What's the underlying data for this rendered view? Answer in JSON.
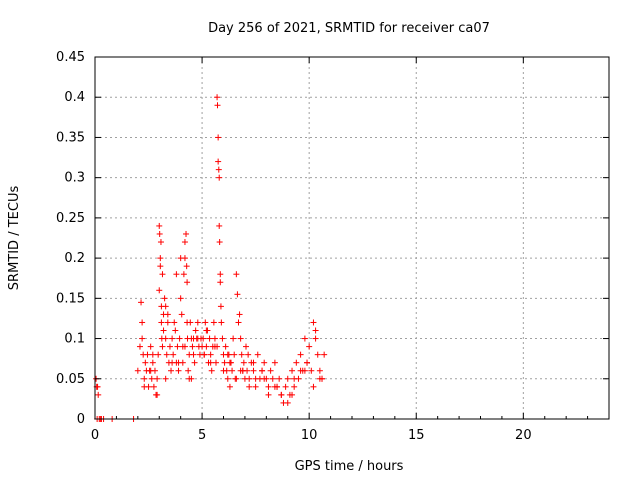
{
  "chart_data": {
    "type": "scatter",
    "title": "Day 256 of 2021, SRMTID for receiver ca07",
    "xlabel": "GPS time / hours",
    "ylabel": "SRMTID / TECUs",
    "xlim": [
      0,
      24
    ],
    "ylim": [
      0,
      0.45
    ],
    "xticks": [
      0,
      5,
      10,
      15,
      20
    ],
    "yticks": [
      0,
      0.05,
      0.1,
      0.15,
      0.2,
      0.25,
      0.3,
      0.35,
      0.4,
      0.45
    ],
    "ytick_labels": [
      "0",
      "0.05",
      "0.1",
      "0.15",
      "0.2",
      "0.25",
      "0.3",
      "0.35",
      "0.4",
      "0.45"
    ],
    "grid": true,
    "marker": "+",
    "marker_color": "#ff0000",
    "series": [
      {
        "name": "SRMTID",
        "x": [
          0.05,
          0.08,
          0.1,
          0.12,
          0.15,
          0.2,
          0.25,
          0.3,
          0.4,
          0.8,
          1.8,
          2.0,
          2.1,
          2.15,
          2.2,
          2.25,
          2.3,
          2.35,
          2.4,
          2.45,
          2.5,
          2.55,
          2.6,
          2.65,
          2.7,
          2.75,
          2.8,
          2.85,
          2.9,
          2.95,
          3.0,
          3.0,
          3.02,
          3.05,
          3.05,
          3.08,
          3.1,
          3.1,
          3.12,
          3.15,
          3.15,
          3.2,
          3.2,
          3.25,
          3.3,
          3.3,
          3.35,
          3.4,
          3.45,
          3.5,
          3.55,
          3.6,
          3.65,
          3.7,
          3.75,
          3.8,
          3.85,
          3.9,
          3.95,
          4.0,
          4.0,
          4.05,
          4.1,
          4.1,
          4.15,
          4.2,
          4.2,
          4.25,
          4.28,
          4.3,
          4.3,
          4.32,
          4.35,
          4.4,
          4.4,
          4.45,
          4.5,
          4.55,
          4.6,
          4.65,
          4.7,
          4.75,
          4.8,
          4.85,
          4.9,
          4.95,
          5.0,
          5.05,
          5.1,
          5.15,
          5.2,
          5.25,
          5.3,
          5.35,
          5.4,
          5.45,
          5.5,
          5.55,
          5.6,
          5.65,
          5.7,
          5.72,
          5.75,
          5.75,
          5.78,
          5.8,
          5.8,
          5.82,
          5.85,
          5.85,
          5.88,
          5.9,
          5.95,
          6.0,
          6.05,
          6.1,
          6.15,
          6.2,
          6.25,
          6.3,
          6.35,
          6.4,
          6.45,
          6.5,
          6.55,
          6.6,
          6.65,
          6.7,
          6.75,
          6.8,
          6.85,
          6.9,
          6.95,
          7.0,
          7.05,
          7.1,
          7.15,
          7.2,
          7.3,
          7.4,
          7.5,
          7.6,
          7.7,
          7.8,
          7.9,
          8.0,
          8.1,
          8.2,
          8.3,
          8.4,
          8.5,
          8.6,
          8.7,
          8.8,
          8.9,
          9.0,
          9.1,
          9.2,
          9.3,
          9.4,
          9.5,
          9.6,
          9.7,
          9.8,
          9.9,
          10.0,
          10.1,
          10.2,
          10.3,
          10.4,
          10.5,
          10.6,
          10.7,
          2.3,
          2.6,
          2.9,
          3.3,
          3.6,
          3.9,
          4.2,
          4.5,
          4.8,
          5.1,
          5.4,
          5.7,
          6.0,
          6.3,
          6.6,
          6.9,
          7.2,
          7.5,
          7.8,
          8.1,
          8.4,
          8.7,
          9.0,
          9.3,
          9.6,
          9.9,
          10.2,
          10.5,
          2.2,
          2.7,
          3.4,
          3.8,
          4.6,
          5.2,
          5.6,
          6.2,
          6.8,
          7.4,
          7.9,
          8.5,
          9.2,
          9.8,
          10.3,
          10.6
        ],
        "y": [
          0.05,
          0.04,
          0.0,
          0.04,
          0.03,
          0.0,
          0.0,
          0.0,
          0.0,
          0.0,
          0.0,
          0.06,
          0.09,
          0.145,
          0.12,
          0.08,
          0.05,
          0.07,
          0.06,
          0.08,
          0.04,
          0.06,
          0.09,
          0.05,
          0.07,
          0.04,
          0.06,
          0.03,
          0.05,
          0.08,
          0.16,
          0.24,
          0.23,
          0.2,
          0.19,
          0.22,
          0.14,
          0.12,
          0.1,
          0.09,
          0.18,
          0.13,
          0.11,
          0.15,
          0.14,
          0.1,
          0.08,
          0.12,
          0.07,
          0.09,
          0.06,
          0.1,
          0.08,
          0.12,
          0.11,
          0.18,
          0.09,
          0.07,
          0.1,
          0.2,
          0.15,
          0.13,
          0.09,
          0.07,
          0.18,
          0.22,
          0.2,
          0.23,
          0.19,
          0.17,
          0.12,
          0.1,
          0.06,
          0.05,
          0.08,
          0.12,
          0.1,
          0.09,
          0.08,
          0.07,
          0.11,
          0.1,
          0.12,
          0.09,
          0.08,
          0.1,
          0.09,
          0.1,
          0.08,
          0.12,
          0.09,
          0.11,
          0.07,
          0.1,
          0.08,
          0.06,
          0.09,
          0.12,
          0.1,
          0.07,
          0.4,
          0.39,
          0.35,
          0.32,
          0.31,
          0.3,
          0.24,
          0.22,
          0.18,
          0.17,
          0.14,
          0.12,
          0.1,
          0.08,
          0.07,
          0.09,
          0.06,
          0.05,
          0.08,
          0.04,
          0.07,
          0.06,
          0.1,
          0.08,
          0.05,
          0.18,
          0.155,
          0.12,
          0.13,
          0.1,
          0.08,
          0.06,
          0.07,
          0.05,
          0.09,
          0.06,
          0.08,
          0.05,
          0.07,
          0.06,
          0.04,
          0.08,
          0.05,
          0.06,
          0.07,
          0.05,
          0.04,
          0.06,
          0.05,
          0.07,
          0.04,
          0.05,
          0.03,
          0.02,
          0.04,
          0.05,
          0.03,
          0.06,
          0.04,
          0.07,
          0.05,
          0.08,
          0.06,
          0.1,
          0.07,
          0.09,
          0.06,
          0.12,
          0.11,
          0.08,
          0.06,
          0.05,
          0.08,
          0.04,
          0.06,
          0.03,
          0.05,
          0.07,
          0.06,
          0.09,
          0.05,
          0.1,
          0.08,
          0.07,
          0.09,
          0.06,
          0.07,
          0.05,
          0.06,
          0.04,
          0.05,
          0.06,
          0.03,
          0.04,
          0.03,
          0.02,
          0.05,
          0.06,
          0.07,
          0.04,
          0.05,
          0.1,
          0.08,
          0.13,
          0.07,
          0.1,
          0.11,
          0.09,
          0.08,
          0.06,
          0.07,
          0.05,
          0.04,
          0.03,
          0.06,
          0.1,
          0.05
        ]
      }
    ]
  }
}
